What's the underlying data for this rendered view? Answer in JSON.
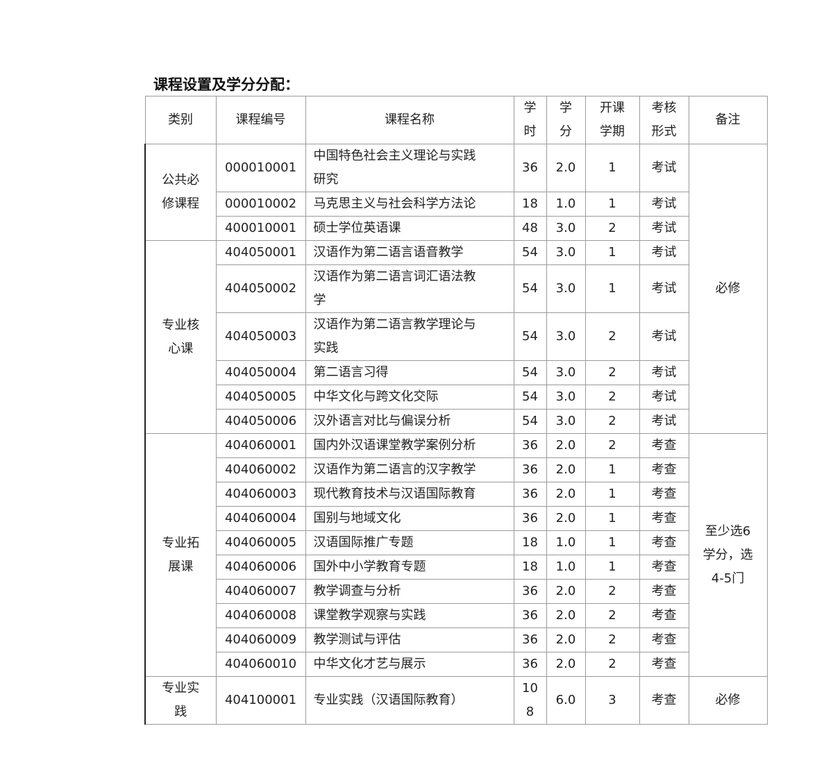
{
  "title": "课程设置及学分分配：",
  "headers": {
    "category": "类别",
    "code": "课程编号",
    "name": "课程名称",
    "hours": "学\n时",
    "credits": "学\n分",
    "semester": "开课\n学期",
    "assessment": "考核\n形式",
    "remark": "备注"
  },
  "groups": [
    {
      "category": "公共必\n修课程",
      "rows": [
        {
          "code": "000010001",
          "name": "中国特色社会主义理论与实践\n研究",
          "hours": "36",
          "credits": "2.0",
          "semester": "1",
          "assessment": "考试"
        },
        {
          "code": "000010002",
          "name": "马克思主义与社会科学方法论",
          "hours": "18",
          "credits": "1.0",
          "semester": "1",
          "assessment": "考试"
        },
        {
          "code": "400010001",
          "name": "硕士学位英语课",
          "hours": "48",
          "credits": "3.0",
          "semester": "2",
          "assessment": "考试"
        }
      ]
    },
    {
      "category": "专业核\n心课",
      "rows": [
        {
          "code": "404050001",
          "name": "汉语作为第二语言语音教学",
          "hours": "54",
          "credits": "3.0",
          "semester": "1",
          "assessment": "考试"
        },
        {
          "code": "404050002",
          "name": "汉语作为第二语言词汇语法教\n学",
          "hours": "54",
          "credits": "3.0",
          "semester": "1",
          "assessment": "考试"
        },
        {
          "code": "404050003",
          "name": "汉语作为第二语言教学理论与\n实践",
          "hours": "54",
          "credits": "3.0",
          "semester": "2",
          "assessment": "考试"
        },
        {
          "code": "404050004",
          "name": "第二语言习得",
          "hours": "54",
          "credits": "3.0",
          "semester": "2",
          "assessment": "考试"
        },
        {
          "code": "404050005",
          "name": "中华文化与跨文化交际",
          "hours": "54",
          "credits": "3.0",
          "semester": "2",
          "assessment": "考试"
        },
        {
          "code": "404050006",
          "name": "汉外语言对比与偏误分析",
          "hours": "54",
          "credits": "3.0",
          "semester": "2",
          "assessment": "考试"
        }
      ]
    },
    {
      "category": "专业拓\n展课",
      "rows": [
        {
          "code": "404060001",
          "name": "国内外汉语课堂教学案例分析",
          "hours": "36",
          "credits": "2.0",
          "semester": "2",
          "assessment": "考查"
        },
        {
          "code": "404060002",
          "name": "汉语作为第二语言的汉字教学",
          "hours": "36",
          "credits": "2.0",
          "semester": "1",
          "assessment": "考查"
        },
        {
          "code": "404060003",
          "name": "现代教育技术与汉语国际教育",
          "hours": "36",
          "credits": "2.0",
          "semester": "1",
          "assessment": "考查"
        },
        {
          "code": "404060004",
          "name": "国别与地域文化",
          "hours": "36",
          "credits": "2.0",
          "semester": "1",
          "assessment": "考查"
        },
        {
          "code": "404060005",
          "name": "汉语国际推广专题",
          "hours": "18",
          "credits": "1.0",
          "semester": "1",
          "assessment": "考查"
        },
        {
          "code": "404060006",
          "name": "国外中小学教育专题",
          "hours": "18",
          "credits": "1.0",
          "semester": "1",
          "assessment": "考查"
        },
        {
          "code": "404060007",
          "name": "教学调查与分析",
          "hours": "36",
          "credits": "2.0",
          "semester": "2",
          "assessment": "考查"
        },
        {
          "code": "404060008",
          "name": "课堂教学观察与实践",
          "hours": "36",
          "credits": "2.0",
          "semester": "2",
          "assessment": "考查"
        },
        {
          "code": "404060009",
          "name": "教学测试与评估",
          "hours": "36",
          "credits": "2.0",
          "semester": "2",
          "assessment": "考查"
        },
        {
          "code": "404060010",
          "name": "中华文化才艺与展示",
          "hours": "36",
          "credits": "2.0",
          "semester": "2",
          "assessment": "考查"
        }
      ]
    },
    {
      "category": "专业实\n践",
      "rows": [
        {
          "code": "404100001",
          "name": "专业实践（汉语国际教育）",
          "hours": "10\n8",
          "credits": "6.0",
          "semester": "3",
          "assessment": "考查"
        }
      ]
    }
  ],
  "remarks": [
    {
      "text": "必修",
      "span_rows": 9
    },
    {
      "text": "至少选6\n学分，选\n4-5门",
      "span_rows": 10
    },
    {
      "text": "必修",
      "span_rows": 1
    }
  ]
}
